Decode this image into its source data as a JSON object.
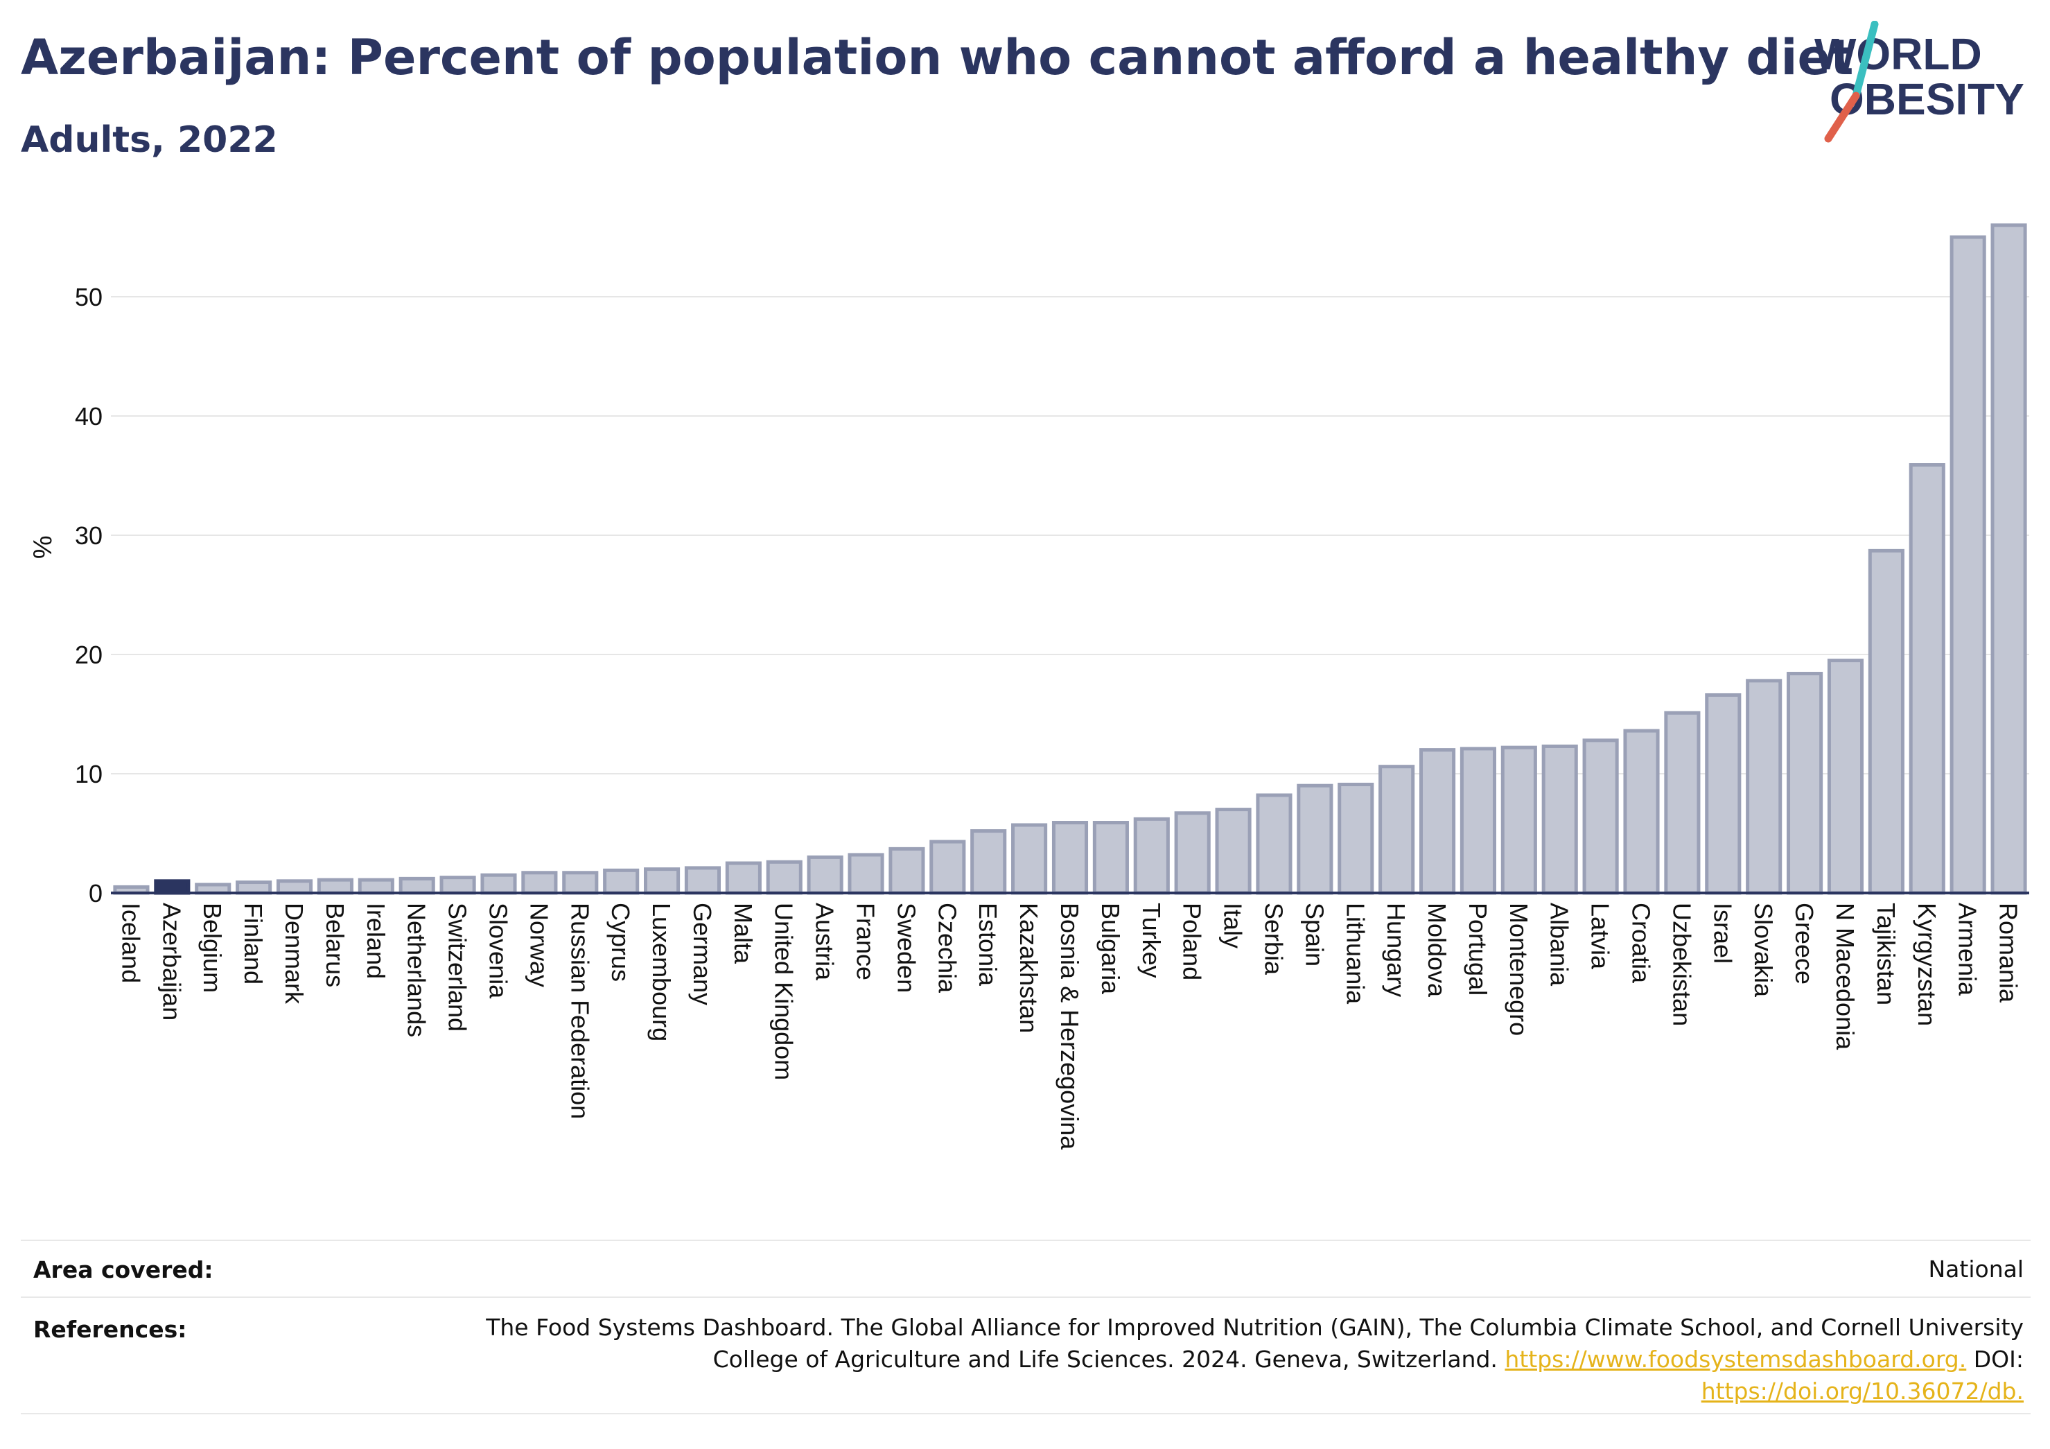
{
  "title": "Azerbaijan: Percent of population who cannot afford a healthy diet",
  "subtitle": "Adults, 2022",
  "logo": {
    "line1": "WORLD",
    "line2": "OBESITY",
    "slash_colors": [
      "#3bbfc0",
      "#e0604a"
    ]
  },
  "colors": {
    "highlight": "#2b3560",
    "bar": "#c2c6d3",
    "bar_border": "#9aa0b6",
    "grid": "#e6e6e6",
    "link": "#e5b31a"
  },
  "chart_data": {
    "type": "bar",
    "title": "Azerbaijan: Percent of population who cannot afford a healthy diet",
    "subtitle": "Adults, 2022",
    "ylabel": "%",
    "xlabel": "",
    "ylim": [
      0,
      58
    ],
    "yticks": [
      0,
      10,
      20,
      30,
      40,
      50
    ],
    "grid": true,
    "highlight": "Azerbaijan",
    "categories": [
      "Iceland",
      "Azerbaijan",
      "Belgium",
      "Finland",
      "Denmark",
      "Belarus",
      "Ireland",
      "Netherlands",
      "Switzerland",
      "Slovenia",
      "Norway",
      "Russian Federation",
      "Cyprus",
      "Luxembourg",
      "Germany",
      "Malta",
      "United Kingdom",
      "Austria",
      "France",
      "Sweden",
      "Czechia",
      "Estonia",
      "Kazakhstan",
      "Bosnia & Herzegovina",
      "Bulgaria",
      "Turkey",
      "Poland",
      "Italy",
      "Serbia",
      "Spain",
      "Lithuania",
      "Hungary",
      "Moldova",
      "Portugal",
      "Montenegro",
      "Albania",
      "Latvia",
      "Croatia",
      "Uzbekistan",
      "Israel",
      "Slovakia",
      "Greece",
      "N Macedonia",
      "Tajikistan",
      "Kyrgyzstan",
      "Armenia",
      "Romania"
    ],
    "values": [
      0.5,
      1.0,
      0.7,
      0.9,
      1.0,
      1.1,
      1.1,
      1.2,
      1.3,
      1.5,
      1.7,
      1.7,
      1.9,
      2.0,
      2.1,
      2.5,
      2.6,
      3.0,
      3.2,
      3.7,
      4.3,
      5.2,
      5.7,
      5.9,
      5.9,
      6.2,
      6.7,
      7.0,
      8.2,
      9.0,
      9.1,
      10.6,
      12.0,
      12.1,
      12.2,
      12.3,
      12.8,
      13.6,
      15.1,
      16.6,
      17.8,
      18.4,
      19.5,
      28.7,
      35.9,
      55.0,
      56.0
    ]
  },
  "footer": {
    "area_label": "Area covered:",
    "area_value": "National",
    "ref_label": "References:",
    "ref_line1": "The Food Systems Dashboard. The Global Alliance for Improved Nutrition (GAIN), The Columbia Climate School, and Cornell University",
    "ref_line2_text": "College of Agriculture and Life Sciences. 2024. Geneva, Switzerland.",
    "ref_link1": "https://www.foodsystemsdashboard.org.",
    "ref_doi_label": "DOI:",
    "ref_link2": "https://doi.org/10.36072/db."
  }
}
